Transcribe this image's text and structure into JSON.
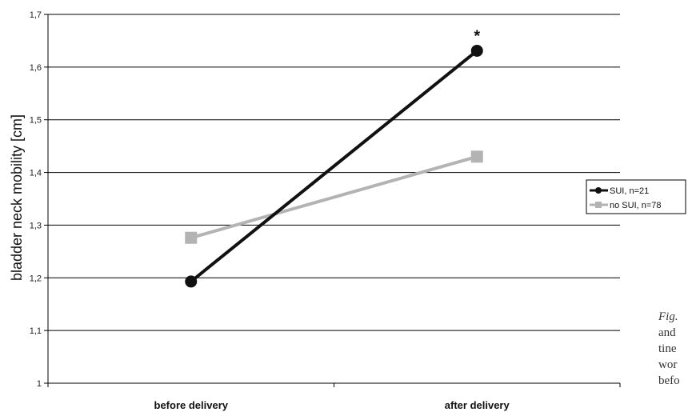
{
  "chart_data": {
    "type": "line",
    "categories": [
      "before delivery",
      "after delivery"
    ],
    "series": [
      {
        "name": "SUI, n=21",
        "values": [
          1.193,
          1.631
        ],
        "color": "#111111",
        "marker": "circle"
      },
      {
        "name": "no SUI, n=78",
        "values": [
          1.276,
          1.43
        ],
        "color": "#b3b3b3",
        "marker": "square"
      }
    ],
    "xlabel": "",
    "ylabel": "bladder neck mobility [cm]",
    "ylim": [
      1,
      1.7
    ],
    "yticks": [
      "1",
      "1,1",
      "1,2",
      "1,3",
      "1,4",
      "1,5",
      "1,6",
      "1,7"
    ],
    "grid": true,
    "legend": "right",
    "annotations": [
      {
        "text": "*",
        "series": "SUI, n=21",
        "category": "after delivery"
      }
    ]
  },
  "caption_fragments": [
    "Fig.",
    "and",
    "tine",
    "wor",
    "befo"
  ]
}
